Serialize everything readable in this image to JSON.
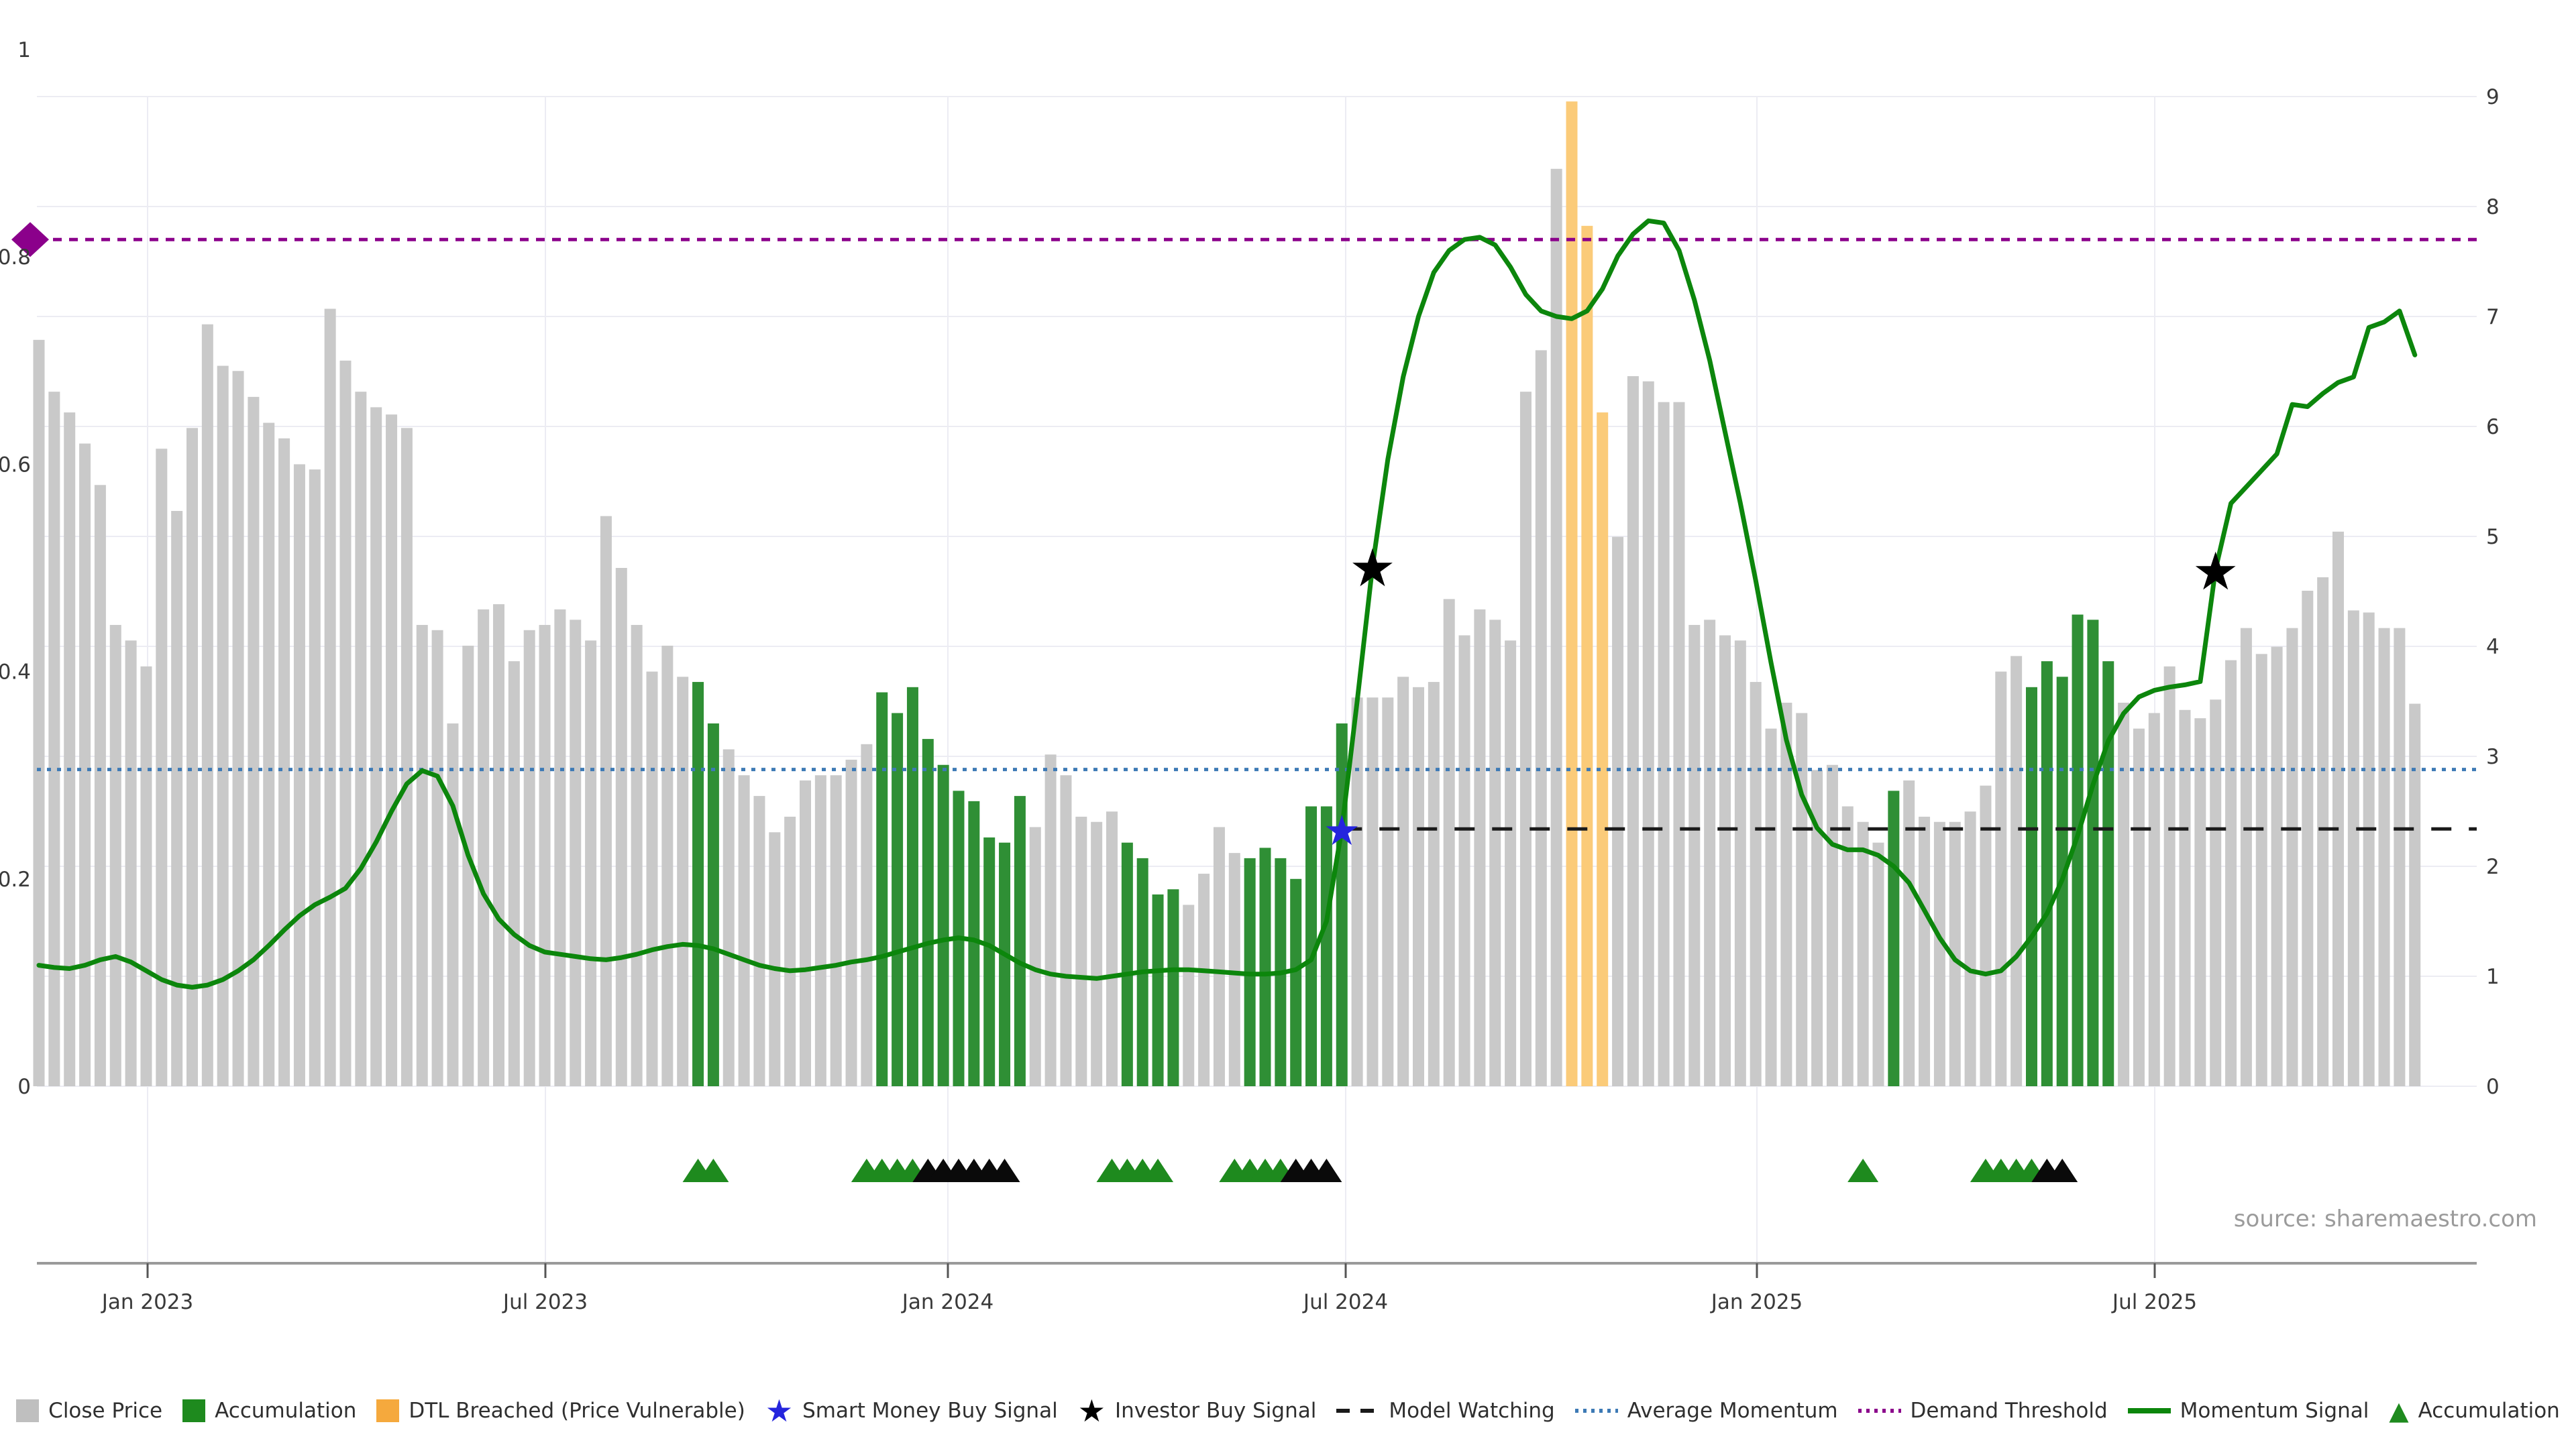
{
  "source_text": "source: sharemaestro.com",
  "chart_data": {
    "type": "bar+line (dual axis)",
    "title": "",
    "xlabel": "",
    "ylabel_left": "",
    "ylabel_right": "",
    "left_axis": {
      "min": 0,
      "max": 1,
      "tick_labels": [
        "0",
        "0.2",
        "0.4",
        "0.6",
        "0.8",
        "1"
      ],
      "tick_values": [
        0,
        0.2,
        0.4,
        0.6,
        0.8,
        1
      ]
    },
    "right_axis": {
      "min": 0,
      "max": 9,
      "tick_values": [
        0,
        1,
        2,
        3,
        4,
        5,
        6,
        7,
        8,
        9
      ]
    },
    "x_ticks": [
      {
        "label": "Jan 2023",
        "px": 220
      },
      {
        "label": "Jul 2023",
        "px": 813
      },
      {
        "label": "Jan 2024",
        "px": 1413
      },
      {
        "label": "Jul 2024",
        "px": 2006
      },
      {
        "label": "Jan 2025",
        "px": 2619
      },
      {
        "label": "Jul 2025",
        "px": 3212
      }
    ],
    "grid": true,
    "legend_position": "bottom-center",
    "bars": {
      "series_name": "Close Price (normalised, weekly)",
      "color_key": {
        "g": "close-price-gray",
        "a": "accumulation-green",
        "o": "dtl-breached-orange"
      },
      "flags": "gggggggggggggggggggggggggggggggggggggggggggaaggggggggggaaaaaaaaaaggggggaaaaggggaaaaaaaggggggggggggggoooggggggggggggggggggaggggggggaaaaaaggggggggggggggggggggggg",
      "values": [
        0.72,
        0.67,
        0.65,
        0.62,
        0.58,
        0.445,
        0.43,
        0.405,
        0.615,
        0.555,
        0.635,
        0.735,
        0.695,
        0.69,
        0.665,
        0.64,
        0.625,
        0.6,
        0.595,
        0.75,
        0.7,
        0.67,
        0.655,
        0.648,
        0.635,
        0.445,
        0.44,
        0.35,
        0.425,
        0.46,
        0.465,
        0.41,
        0.44,
        0.445,
        0.46,
        0.45,
        0.43,
        0.55,
        0.5,
        0.445,
        0.4,
        0.425,
        0.395,
        0.39,
        0.35,
        0.325,
        0.3,
        0.28,
        0.245,
        0.26,
        0.295,
        0.3,
        0.3,
        0.315,
        0.33,
        0.38,
        0.36,
        0.385,
        0.335,
        0.31,
        0.285,
        0.275,
        0.24,
        0.235,
        0.28,
        0.25,
        0.32,
        0.3,
        0.26,
        0.255,
        0.265,
        0.235,
        0.22,
        0.185,
        0.19,
        0.175,
        0.205,
        0.25,
        0.225,
        0.22,
        0.23,
        0.22,
        0.2,
        0.27,
        0.27,
        0.35,
        0.375,
        0.375,
        0.375,
        0.395,
        0.385,
        0.39,
        0.47,
        0.435,
        0.46,
        0.45,
        0.43,
        0.67,
        0.71,
        0.885,
        0.95,
        0.83,
        0.65,
        0.53,
        0.685,
        0.68,
        0.66,
        0.66,
        0.445,
        0.45,
        0.435,
        0.43,
        0.39,
        0.345,
        0.37,
        0.36,
        0.305,
        0.31,
        0.27,
        0.255,
        0.235,
        0.285,
        0.295,
        0.26,
        0.255,
        0.255,
        0.265,
        0.29,
        0.4,
        0.415,
        0.385,
        0.41,
        0.395,
        0.455,
        0.45,
        0.41,
        0.37,
        0.345,
        0.36,
        0.405,
        0.363,
        0.355,
        0.373,
        0.411,
        0.442,
        0.417,
        0.424,
        0.442,
        0.478,
        0.491,
        0.535,
        0.459,
        0.457,
        0.442,
        0.442,
        0.369
      ]
    },
    "momentum_signal": {
      "series_name": "Momentum Signal (right axis)",
      "values": [
        1.1,
        1.08,
        1.07,
        1.1,
        1.15,
        1.18,
        1.13,
        1.05,
        0.97,
        0.92,
        0.9,
        0.92,
        0.97,
        1.05,
        1.15,
        1.28,
        1.42,
        1.55,
        1.65,
        1.72,
        1.8,
        1.98,
        2.22,
        2.5,
        2.75,
        2.87,
        2.82,
        2.55,
        2.1,
        1.75,
        1.52,
        1.38,
        1.28,
        1.22,
        1.2,
        1.18,
        1.16,
        1.15,
        1.17,
        1.2,
        1.24,
        1.27,
        1.29,
        1.28,
        1.25,
        1.2,
        1.15,
        1.1,
        1.07,
        1.05,
        1.06,
        1.08,
        1.1,
        1.13,
        1.15,
        1.18,
        1.22,
        1.26,
        1.3,
        1.33,
        1.35,
        1.33,
        1.28,
        1.2,
        1.12,
        1.06,
        1.02,
        1.0,
        0.99,
        0.98,
        1.0,
        1.02,
        1.04,
        1.05,
        1.06,
        1.06,
        1.05,
        1.04,
        1.03,
        1.02,
        1.02,
        1.03,
        1.06,
        1.15,
        1.5,
        2.34,
        3.5,
        4.73,
        5.7,
        6.45,
        7.0,
        7.4,
        7.6,
        7.7,
        7.72,
        7.65,
        7.45,
        7.2,
        7.05,
        7.0,
        6.98,
        7.05,
        7.25,
        7.55,
        7.75,
        7.87,
        7.85,
        7.6,
        7.15,
        6.6,
        5.95,
        5.3,
        4.6,
        3.85,
        3.15,
        2.65,
        2.35,
        2.2,
        2.15,
        2.15,
        2.1,
        2.0,
        1.85,
        1.6,
        1.35,
        1.15,
        1.05,
        1.02,
        1.05,
        1.18,
        1.36,
        1.57,
        1.88,
        2.28,
        2.74,
        3.14,
        3.39,
        3.54,
        3.6,
        3.63,
        3.65,
        3.68,
        4.7,
        5.3,
        5.45,
        5.6,
        5.75,
        6.2,
        6.18,
        6.3,
        6.4,
        6.45,
        6.9,
        6.95,
        7.05,
        6.65
      ]
    },
    "reference_lines": {
      "demand_threshold": {
        "value_right": 7.7,
        "style": "dotted",
        "color": "#8b008b",
        "marker_left_end": "diamond"
      },
      "average_momentum": {
        "value_right": 2.88,
        "style": "dotted",
        "color": "#3d7ab5"
      },
      "model_watching": {
        "value_right": 2.34,
        "style": "dashed",
        "color": "#1a1a1a",
        "start_index": 85
      }
    },
    "signal_markers": {
      "smart_money_buy": [
        {
          "index": 85,
          "value_right": 2.34,
          "color": "#2525dd"
        }
      ],
      "investor_buy": [
        {
          "index": 87,
          "value_right": 4.73,
          "color": "#000000"
        },
        {
          "index": 142,
          "value_right": 4.7,
          "color": "#000000"
        }
      ]
    },
    "accumulation_marker_row": {
      "green_indices": [
        43,
        44,
        54,
        55,
        56,
        57,
        70,
        71,
        72,
        73,
        78,
        79,
        80,
        81,
        119,
        127,
        128,
        129,
        130
      ],
      "black_indices": [
        58,
        59,
        60,
        61,
        62,
        63,
        82,
        83,
        84,
        131,
        132
      ]
    },
    "colors": {
      "close_price_bar": "#c9c9c9",
      "accumulation_bar": "#2f8f35",
      "dtl_breached_bar": "#fbcb79",
      "momentum_line": "#0c860c",
      "grid": "#ececf3",
      "axis": "#9a9a9a"
    }
  },
  "legend": {
    "items": [
      {
        "label": "Close Price",
        "marker": "square",
        "color": "#bfbfbf"
      },
      {
        "label": "Accumulation",
        "marker": "square",
        "color": "#1e8a1e"
      },
      {
        "label": "DTL Breached (Price Vulnerable)",
        "marker": "square",
        "color": "#f5a93d"
      },
      {
        "label": "Smart Money Buy Signal",
        "marker": "star",
        "color": "#2525dd"
      },
      {
        "label": "Investor Buy Signal",
        "marker": "star",
        "color": "#000000"
      },
      {
        "label": "Model Watching",
        "marker": "dashed",
        "color": "#1a1a1a"
      },
      {
        "label": "Average Momentum",
        "marker": "dotted",
        "color": "#3d7ab5"
      },
      {
        "label": "Demand Threshold",
        "marker": "dotted",
        "color": "#8b008b"
      },
      {
        "label": "Momentum Signal",
        "marker": "line",
        "color": "#0c860c"
      },
      {
        "label": "Accumulation",
        "marker": "triangle",
        "color": "#1e8a1e"
      }
    ]
  }
}
